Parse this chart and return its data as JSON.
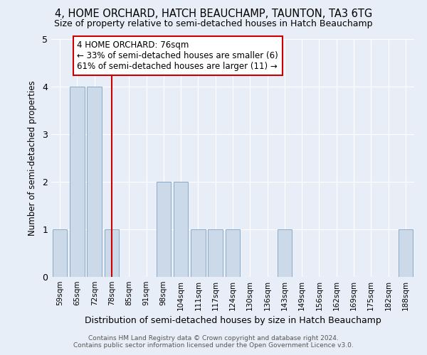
{
  "title": "4, HOME ORCHARD, HATCH BEAUCHAMP, TAUNTON, TA3 6TG",
  "subtitle": "Size of property relative to semi-detached houses in Hatch Beauchamp",
  "xlabel": "Distribution of semi-detached houses by size in Hatch Beauchamp",
  "ylabel": "Number of semi-detached properties",
  "categories": [
    "59sqm",
    "65sqm",
    "72sqm",
    "78sqm",
    "85sqm",
    "91sqm",
    "98sqm",
    "104sqm",
    "111sqm",
    "117sqm",
    "124sqm",
    "130sqm",
    "136sqm",
    "143sqm",
    "149sqm",
    "156sqm",
    "162sqm",
    "169sqm",
    "175sqm",
    "182sqm",
    "188sqm"
  ],
  "values": [
    1,
    4,
    4,
    1,
    0,
    0,
    2,
    2,
    1,
    1,
    1,
    0,
    0,
    1,
    0,
    0,
    0,
    0,
    0,
    0,
    1
  ],
  "bar_color": "#ccd9e8",
  "bar_edge_color": "#8aaac8",
  "property_index": 3,
  "property_line_color": "#cc0000",
  "annotation_text": "4 HOME ORCHARD: 76sqm\n← 33% of semi-detached houses are smaller (6)\n61% of semi-detached houses are larger (11) →",
  "annotation_box_color": "#ffffff",
  "annotation_box_edge_color": "#cc0000",
  "ylim": [
    0,
    5
  ],
  "yticks": [
    0,
    1,
    2,
    3,
    4,
    5
  ],
  "background_color": "#e8eef8",
  "plot_bg_color": "#e8eef8",
  "grid_color": "#ffffff",
  "footer_line1": "Contains HM Land Registry data © Crown copyright and database right 2024.",
  "footer_line2": "Contains public sector information licensed under the Open Government Licence v3.0."
}
